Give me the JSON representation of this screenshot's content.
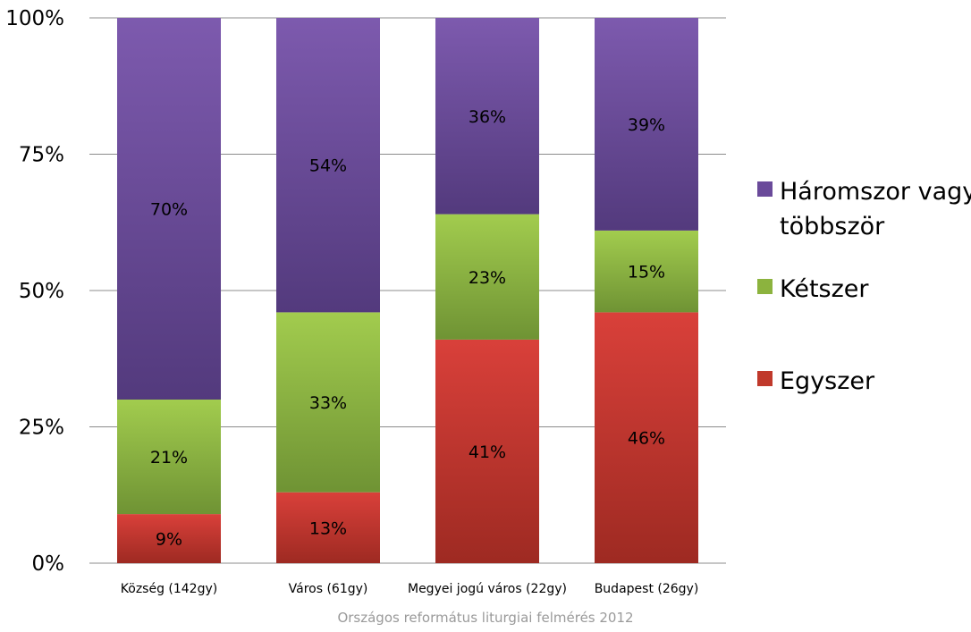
{
  "chart_data": {
    "type": "bar",
    "stacked": true,
    "categories": [
      "Község (142gy)",
      "Város (61gy)",
      "Megyei jogú város (22gy)",
      "Budapest (26gy)"
    ],
    "series": [
      {
        "name": "Egyszer",
        "values": [
          9,
          13,
          41,
          46
        ],
        "color": "#c0392b"
      },
      {
        "name": "Kétszer",
        "values": [
          21,
          33,
          23,
          15
        ],
        "color": "#8cb33e"
      },
      {
        "name": "Háromszor vagy többször",
        "values": [
          70,
          54,
          36,
          39
        ],
        "color": "#6a4a9a"
      }
    ],
    "data_labels": [
      [
        "9%",
        "13%",
        "41%",
        "46%"
      ],
      [
        "21%",
        "33%",
        "23%",
        "15%"
      ],
      [
        "70%",
        "54%",
        "36%",
        "39%"
      ]
    ],
    "legend": {
      "position": "right",
      "entries": [
        {
          "lines": [
            "Háromszor vagy",
            "többször"
          ],
          "color": "#6a4a9a"
        },
        {
          "lines": [
            "Kétszer"
          ],
          "color": "#8cb33e"
        },
        {
          "lines": [
            "Egyszer"
          ],
          "color": "#c0392b"
        }
      ]
    },
    "yticks": [
      "0%",
      "25%",
      "50%",
      "75%",
      "100%"
    ],
    "ylim": [
      0,
      100
    ],
    "grid": true,
    "source_note": "Országos református liturgiai felmérés 2012"
  }
}
